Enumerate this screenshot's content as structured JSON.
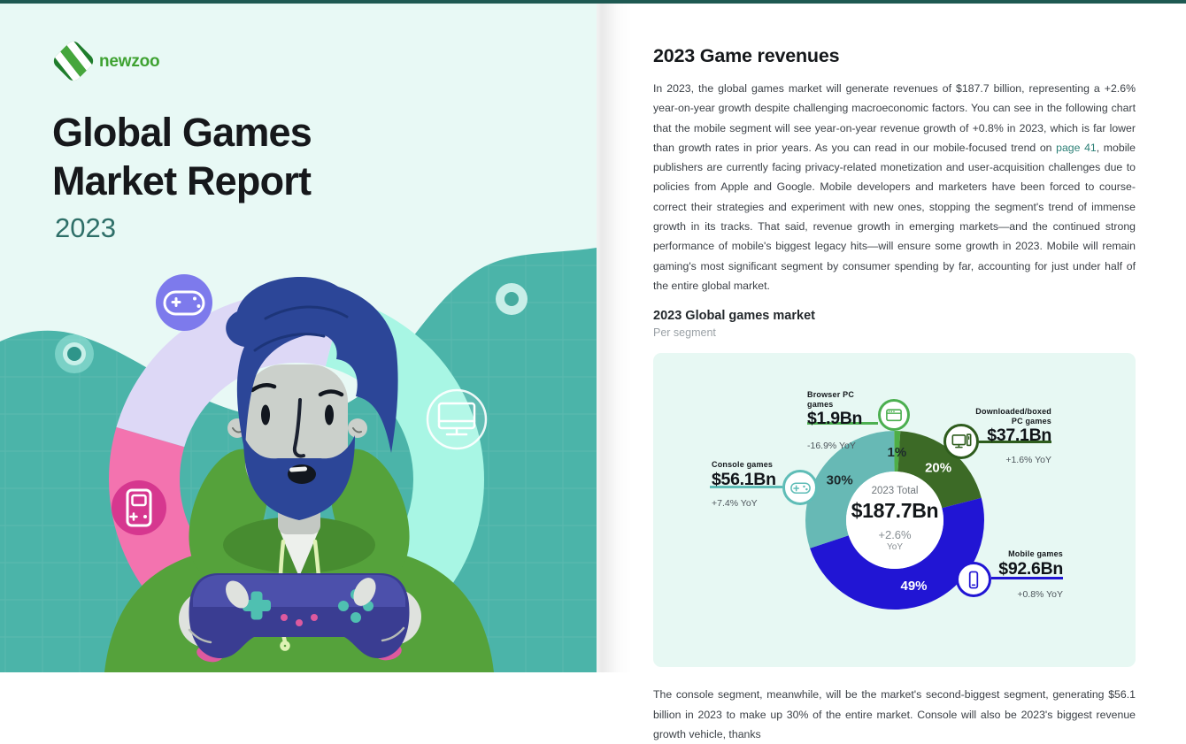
{
  "palette": {
    "top_bar": "#1e5952",
    "cover_bg": "#e8f9f5",
    "cover_teal": "#4bb4a9",
    "ring_aqua": "#a8f6e4",
    "ring_pink": "#f373af",
    "ring_lavender": "#ddd8f6",
    "badge_purple": "#7d7aec",
    "badge_pink": "#d6378f",
    "brand_green": "#3fa232",
    "year_teal": "#2e6f68",
    "page_bg": "#ffffff",
    "panel_bg": "#e7f8f3",
    "heading": "#15181b",
    "body_text": "#3b4046",
    "muted": "#9aa1a6",
    "link": "#2d8077"
  },
  "cover": {
    "brand": "newzoo",
    "title_line1": "Global Games",
    "title_line2": "Market Report",
    "year": "2023",
    "badge_icons": [
      "gamepad-icon",
      "handheld-console-icon",
      "monitor-icon"
    ]
  },
  "page": {
    "heading": "2023 Game revenues",
    "intro_before_link": "In 2023, the global games market will generate revenues of $187.7 billion, representing a +2.6% year-on-year growth despite challenging macroeconomic factors. You can see in the following chart that the mobile segment will see year-on-year revenue growth of +0.8% in 2023, which is far lower than growth rates in prior years. As you can read in our mobile-focused trend on ",
    "intro_link": "page 41",
    "intro_after_link": ", mobile publishers are currently facing privacy-related monetization and user-acquisition challenges due to policies from Apple and Google. Mobile developers and marketers have been forced to course-correct their strategies and experiment with new ones, stopping the segment's trend of immense growth in its tracks. That said, revenue growth in emerging markets—and the continued strong performance of mobile's biggest legacy hits—will ensure some growth in 2023. Mobile will remain gaming's most significant segment by consumer spending by far, accounting for just under half of the entire global market.",
    "chart_heading": "2023 Global games market",
    "chart_subheading": "Per segment",
    "footer_paragraph": "The console segment, meanwhile, will be the market's second-biggest segment, generating $56.1 billion in 2023 to make up 30% of the entire market. Console will also be 2023's biggest revenue growth vehicle, thanks"
  },
  "chart_data": {
    "type": "pie",
    "title": "2023 Global games market",
    "subtitle": "Per segment",
    "legend_position": "around",
    "center": {
      "label": "2023 Total",
      "value": "$187.7Bn",
      "growth": "+2.6%",
      "growth_unit": "YoY"
    },
    "segments": [
      {
        "name": "Browser PC games",
        "name_line1": "Browser PC games",
        "value": "$1.9Bn",
        "yoy": "-16.9% YoY",
        "share_pct": 1,
        "share_label": "1%",
        "share_label_color": "#1d2a2c",
        "color": "#4fae46",
        "accent": "#4caf50",
        "icon": "browser-window-icon"
      },
      {
        "name": "Downloaded/boxed PC games",
        "name_line1": "Downloaded/boxed",
        "name_line2": "PC games",
        "value": "$37.1Bn",
        "yoy": "+1.6% YoY",
        "share_pct": 20,
        "share_label": "20%",
        "share_label_color": "#ffffff",
        "color": "#3c6a26",
        "accent": "#2e5c1d",
        "icon": "desktop-pc-icon"
      },
      {
        "name": "Mobile games",
        "name_line1": "Mobile games",
        "value": "$92.6Bn",
        "yoy": "+0.8% YoY",
        "share_pct": 49,
        "share_label": "49%",
        "share_label_color": "#ffffff",
        "color": "#2115d4",
        "accent": "#2115d4",
        "icon": "smartphone-icon"
      },
      {
        "name": "Console games",
        "name_line1": "Console games",
        "value": "$56.1Bn",
        "yoy": "+7.4% YoY",
        "share_pct": 30,
        "share_label": "30%",
        "share_label_color": "#1d2a2c",
        "color": "#67b9b5",
        "accent": "#5fbdb7",
        "icon": "gamepad-icon"
      }
    ]
  }
}
